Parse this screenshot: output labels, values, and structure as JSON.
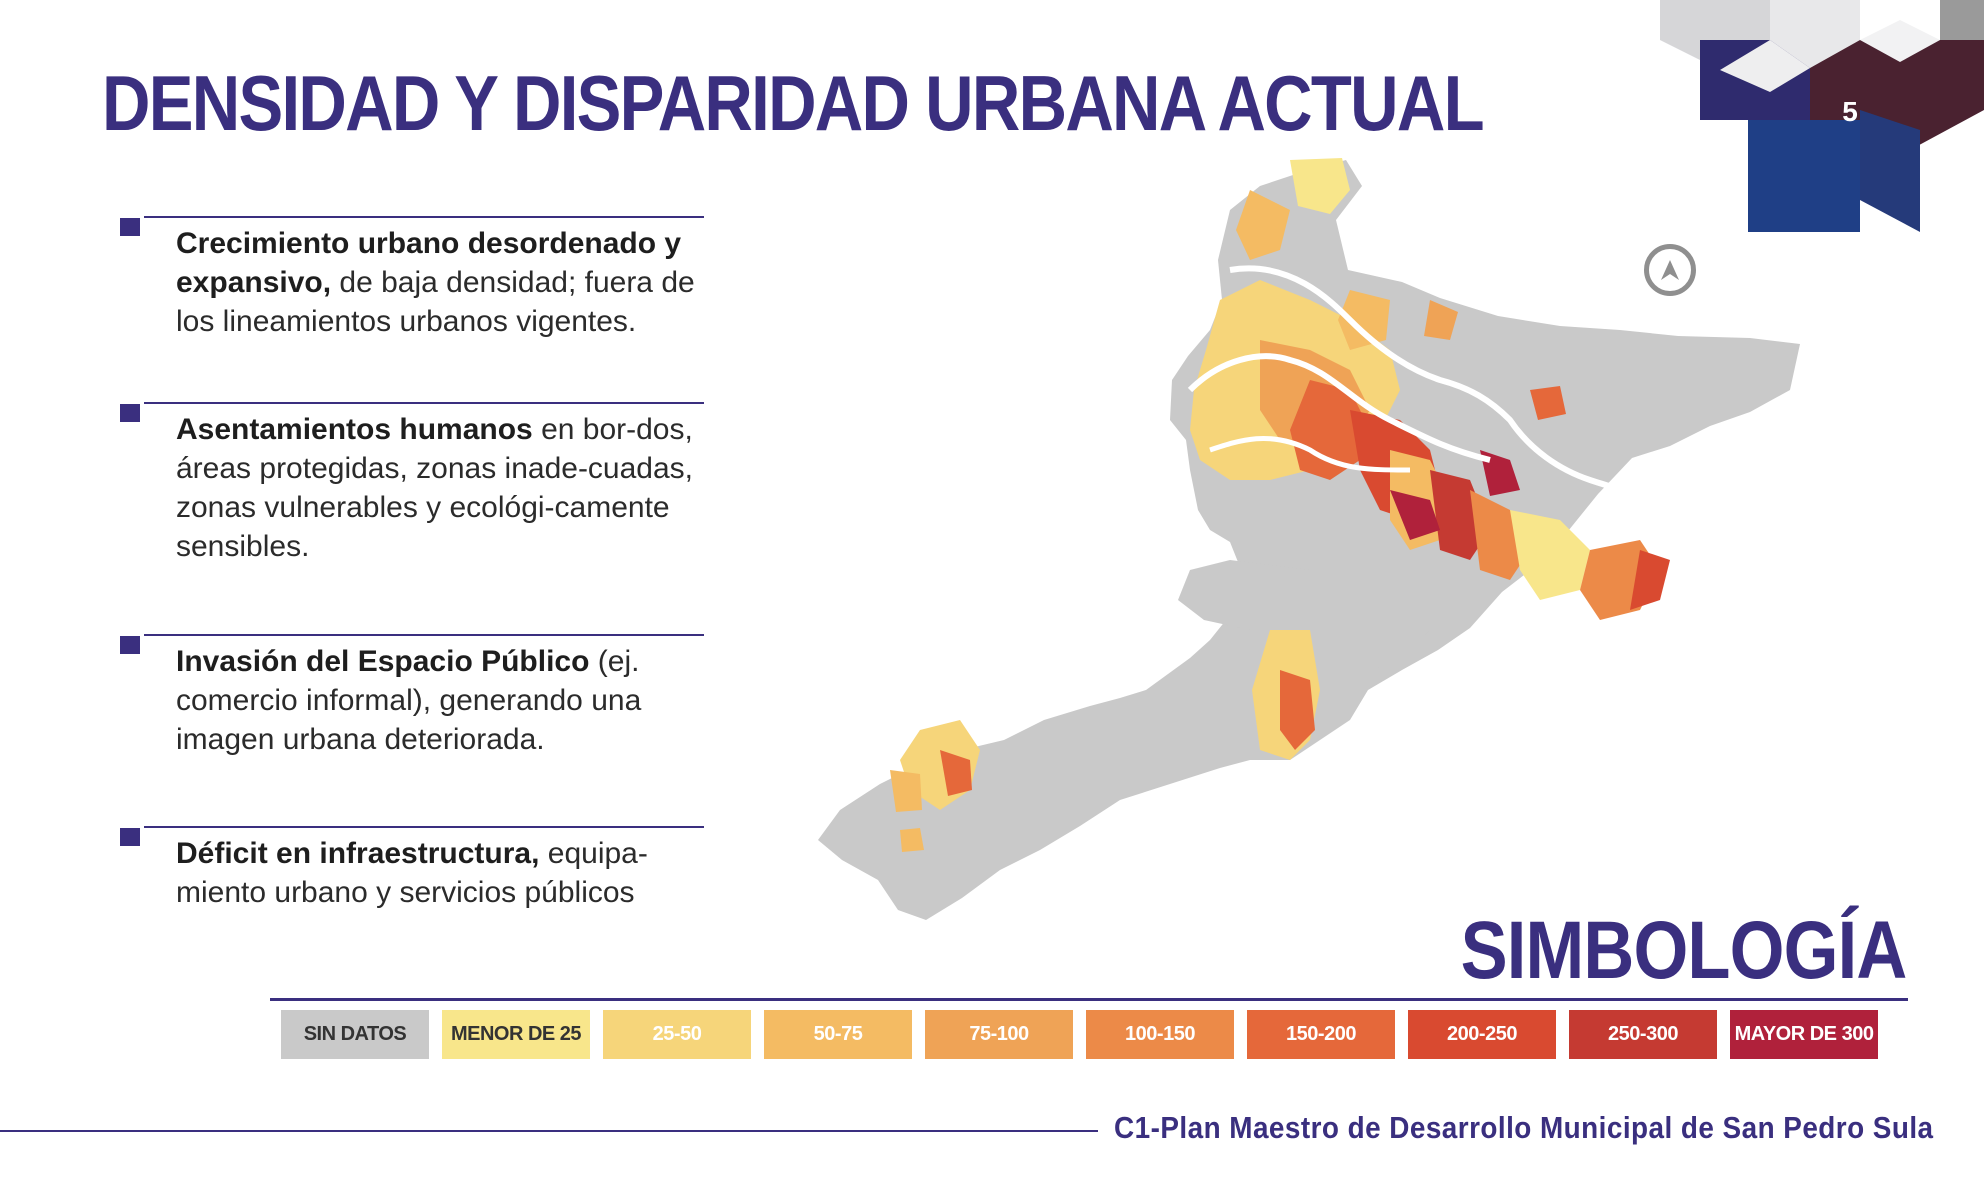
{
  "title": "DENSIDAD Y DISPARIDAD URBANA ACTUAL",
  "page_number": "5",
  "bullets": [
    {
      "bold": "Crecimiento urbano desordenado y expansivo,",
      "text": " de baja densidad; fuera de los lineamientos urbanos vigentes."
    },
    {
      "bold": "Asentamientos humanos",
      "text": " en bor-dos, áreas protegidas, zonas inade-cuadas, zonas vulnerables y ecológi-camente sensibles."
    },
    {
      "bold": "Invasión del Espacio Público",
      "text": " (ej. comercio informal), generando una imagen urbana deteriorada."
    },
    {
      "bold": "Déficit en infraestructura,",
      "text": " equipa-miento urbano y servicios públicos"
    }
  ],
  "map": {
    "north_arrow": "north-arrow-icon",
    "base_color": "#c9c9c9",
    "road_color": "#ffffff"
  },
  "legend": {
    "title": "SIMBOLOGÍA",
    "items": [
      {
        "label": "SIN DATOS",
        "color": "#c9c9c9",
        "text_color": "#333333"
      },
      {
        "label": "MENOR DE 25",
        "color": "#f8e68b",
        "text_color": "#333333"
      },
      {
        "label": "25-50",
        "color": "#f6d57a",
        "text_color": "#ffffff"
      },
      {
        "label": "50-75",
        "color": "#f4bb63",
        "text_color": "#ffffff"
      },
      {
        "label": "75-100",
        "color": "#efa356",
        "text_color": "#ffffff"
      },
      {
        "label": "100-150",
        "color": "#ec8a48",
        "text_color": "#ffffff"
      },
      {
        "label": "150-200",
        "color": "#e5683a",
        "text_color": "#ffffff"
      },
      {
        "label": "200-250",
        "color": "#d94a30",
        "text_color": "#ffffff"
      },
      {
        "label": "250-300",
        "color": "#c53a32",
        "text_color": "#ffffff"
      },
      {
        "label": "MAYOR DE 300",
        "color": "#b0213b",
        "text_color": "#ffffff"
      }
    ]
  },
  "footer": "C1-Plan Maestro de Desarrollo Municipal de San Pedro Sula",
  "colors": {
    "accent": "#3a2f7f"
  }
}
